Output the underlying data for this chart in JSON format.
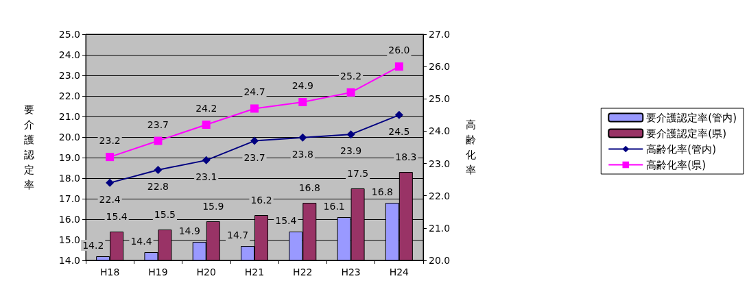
{
  "chart_data": {
    "type": "bar",
    "categories": [
      "H18",
      "H19",
      "H20",
      "H21",
      "H22",
      "H23",
      "H24"
    ],
    "ylabel": "要介護認定率",
    "y2label": "高齢化率",
    "ylim": [
      14.0,
      25.0
    ],
    "yticks": [
      {
        "value": 14,
        "label": "14.0"
      },
      {
        "value": 15,
        "label": "15.0"
      },
      {
        "value": 16,
        "label": "16.0"
      },
      {
        "value": 17,
        "label": "17.0"
      },
      {
        "value": 18,
        "label": "18.0"
      },
      {
        "value": 19,
        "label": "19.0"
      },
      {
        "value": 20,
        "label": "20.0"
      },
      {
        "value": 21,
        "label": "21.0"
      },
      {
        "value": 22,
        "label": "22.0"
      },
      {
        "value": 23,
        "label": "23.0"
      },
      {
        "value": 24,
        "label": "24.0"
      },
      {
        "value": 25,
        "label": "25.0"
      }
    ],
    "y2lim": [
      20.0,
      27.0
    ],
    "y2ticks": [
      {
        "value": 20,
        "label": "20.0"
      },
      {
        "value": 21,
        "label": "21.0"
      },
      {
        "value": 22,
        "label": "22.0"
      },
      {
        "value": 23,
        "label": "23.0"
      },
      {
        "value": 24,
        "label": "24.0"
      },
      {
        "value": 25,
        "label": "25.0"
      },
      {
        "value": 26,
        "label": "26.0"
      },
      {
        "value": 27,
        "label": "27.0"
      }
    ],
    "grid": "y",
    "legend": "right",
    "series": [
      {
        "name": "要介護認定率(管内)",
        "color": "#9999ff",
        "values": [
          14.2,
          14.4,
          14.9,
          14.7,
          15.4,
          16.1,
          16.8
        ],
        "value_labels": [
          "14.2",
          "14.4",
          "14.9",
          "14.7",
          "15.4",
          "16.1",
          "16.8"
        ]
      },
      {
        "name": "要介護認定率(県)",
        "color": "#993366",
        "values": [
          15.4,
          15.5,
          15.9,
          16.2,
          16.8,
          17.5,
          18.3
        ],
        "value_labels": [
          "15.4",
          "15.5",
          "15.9",
          "16.2",
          "16.8",
          "17.5",
          "18.3"
        ]
      },
      {
        "name": "高齢化率(管内)",
        "type": "line",
        "axis": "y2",
        "marker": "diamond",
        "color": "#000080",
        "values": [
          22.4,
          22.8,
          23.1,
          23.7,
          23.8,
          23.9,
          24.5
        ],
        "value_labels": [
          "22.4",
          "22.8",
          "23.1",
          "23.7",
          "23.8",
          "23.9",
          "24.5"
        ]
      },
      {
        "name": "高齢化率(県)",
        "type": "line",
        "axis": "y2",
        "marker": "square",
        "color": "#ff00ff",
        "values": [
          23.2,
          23.7,
          24.2,
          24.7,
          24.9,
          25.2,
          26.0
        ],
        "value_labels": [
          "23.2",
          "23.7",
          "24.2",
          "24.7",
          "24.9",
          "25.2",
          "26.0"
        ]
      }
    ]
  }
}
